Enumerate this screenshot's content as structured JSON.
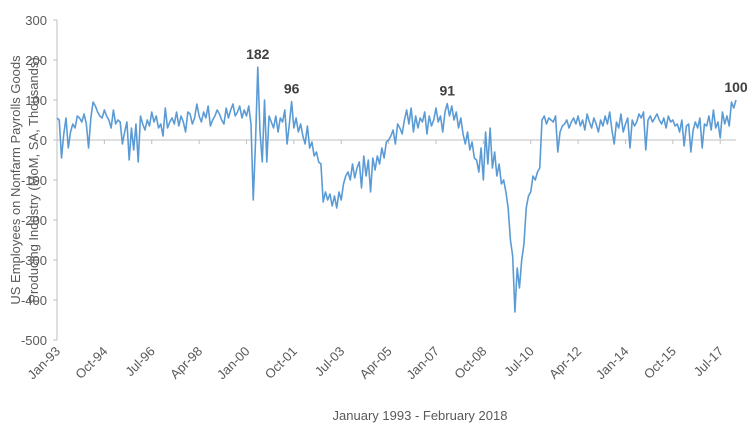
{
  "chart_data": {
    "type": "line",
    "x_label": "January 1993 - February 2018",
    "y_label": [
      "US Employees on Nonfarm Payrolls Goods",
      "Producing Industry (MoM, SA, Thousands)"
    ],
    "ylim": [
      -500,
      300
    ],
    "yticks": [
      -500,
      -400,
      -300,
      -200,
      -100,
      0,
      100,
      200,
      300
    ],
    "categories": [
      "Jan-93",
      null,
      null,
      null,
      null,
      null,
      null,
      null,
      null,
      null,
      null,
      null,
      null,
      null,
      null,
      null,
      null,
      null,
      null,
      null,
      null,
      "Oct-94",
      null,
      null,
      null,
      null,
      null,
      null,
      null,
      null,
      null,
      null,
      null,
      null,
      null,
      null,
      null,
      null,
      null,
      null,
      null,
      null,
      "Jul-96",
      null,
      null,
      null,
      null,
      null,
      null,
      null,
      null,
      null,
      null,
      null,
      null,
      null,
      null,
      null,
      null,
      null,
      null,
      null,
      null,
      "Apr-98",
      null,
      null,
      null,
      null,
      null,
      null,
      null,
      null,
      null,
      null,
      null,
      null,
      null,
      null,
      null,
      null,
      null,
      null,
      null,
      null,
      "Jan-00",
      null,
      null,
      null,
      null,
      null,
      null,
      null,
      null,
      null,
      null,
      null,
      null,
      null,
      null,
      null,
      null,
      null,
      null,
      null,
      null,
      "Oct-01",
      null,
      null,
      null,
      null,
      null,
      null,
      null,
      null,
      null,
      null,
      null,
      null,
      null,
      null,
      null,
      null,
      null,
      null,
      null,
      null,
      "Jul-03",
      null,
      null,
      null,
      null,
      null,
      null,
      null,
      null,
      null,
      null,
      null,
      null,
      null,
      null,
      null,
      null,
      null,
      null,
      null,
      null,
      "Apr-05",
      null,
      null,
      null,
      null,
      null,
      null,
      null,
      null,
      null,
      null,
      null,
      null,
      null,
      null,
      null,
      null,
      null,
      null,
      null,
      null,
      "Jan-07",
      null,
      null,
      null,
      null,
      null,
      null,
      null,
      null,
      null,
      null,
      null,
      null,
      null,
      null,
      null,
      null,
      null,
      null,
      null,
      null,
      "Oct-08",
      null,
      null,
      null,
      null,
      null,
      null,
      null,
      null,
      null,
      null,
      null,
      null,
      null,
      null,
      null,
      null,
      null,
      null,
      null,
      null,
      "Jul-10",
      null,
      null,
      null,
      null,
      null,
      null,
      null,
      null,
      null,
      null,
      null,
      null,
      null,
      null,
      null,
      null,
      null,
      null,
      null,
      null,
      "Apr-12",
      null,
      null,
      null,
      null,
      null,
      null,
      null,
      null,
      null,
      null,
      null,
      null,
      null,
      null,
      null,
      null,
      null,
      null,
      null,
      null,
      "Jan-14",
      null,
      null,
      null,
      null,
      null,
      null,
      null,
      null,
      null,
      null,
      null,
      null,
      null,
      null,
      null,
      null,
      null,
      null,
      null,
      null,
      "Oct-15",
      null,
      null,
      null,
      null,
      null,
      null,
      null,
      null,
      null,
      null,
      null,
      null,
      null,
      null,
      null,
      null,
      null,
      null,
      null,
      null,
      "Jul-17",
      null,
      null,
      null,
      null,
      null,
      null,
      null
    ],
    "series": [
      {
        "color": "#5b9bd5",
        "values": [
          55,
          50,
          -45,
          15,
          55,
          -20,
          20,
          40,
          30,
          60,
          55,
          45,
          65,
          40,
          -20,
          55,
          95,
          85,
          70,
          60,
          55,
          75,
          60,
          50,
          30,
          75,
          40,
          50,
          45,
          -10,
          20,
          45,
          -50,
          30,
          -25,
          40,
          -55,
          60,
          40,
          25,
          50,
          35,
          70,
          45,
          60,
          30,
          40,
          10,
          80,
          30,
          45,
          55,
          40,
          70,
          35,
          60,
          45,
          20,
          70,
          65,
          40,
          55,
          90,
          60,
          45,
          70,
          55,
          85,
          35,
          50,
          60,
          75,
          65,
          50,
          40,
          80,
          55,
          75,
          90,
          60,
          70,
          85,
          55,
          75,
          60,
          85,
          40,
          -150,
          -5,
          182,
          20,
          -55,
          100,
          -55,
          60,
          45,
          30,
          60,
          20,
          55,
          45,
          75,
          -10,
          40,
          96,
          30,
          55,
          20,
          40,
          10,
          -10,
          35,
          -20,
          -5,
          -40,
          -30,
          -55,
          -60,
          -155,
          -130,
          -150,
          -135,
          -165,
          -140,
          -170,
          -130,
          -150,
          -110,
          -90,
          -80,
          -100,
          -60,
          -95,
          -70,
          -55,
          -120,
          -40,
          -90,
          -50,
          -130,
          -45,
          -75,
          -40,
          -60,
          -20,
          -45,
          -5,
          0,
          10,
          25,
          -10,
          40,
          30,
          15,
          50,
          75,
          40,
          80,
          20,
          60,
          30,
          55,
          45,
          70,
          15,
          60,
          35,
          50,
          80,
          45,
          60,
          20,
          70,
          91,
          60,
          85,
          50,
          70,
          30,
          55,
          15,
          -10,
          20,
          -25,
          -5,
          -45,
          -50,
          -80,
          -20,
          -100,
          20,
          -60,
          30,
          -70,
          -30,
          -90,
          -60,
          -110,
          -100,
          -130,
          -170,
          -250,
          -290,
          -430,
          -320,
          -370,
          -300,
          -260,
          -170,
          -140,
          -130,
          -90,
          -100,
          -80,
          -70,
          50,
          60,
          40,
          55,
          50,
          45,
          60,
          -30,
          20,
          35,
          40,
          50,
          30,
          45,
          55,
          40,
          60,
          35,
          50,
          25,
          65,
          45,
          30,
          55,
          40,
          20,
          50,
          35,
          60,
          40,
          70,
          25,
          -10,
          45,
          30,
          65,
          20,
          40,
          55,
          -20,
          50,
          35,
          45,
          65,
          55,
          70,
          -25,
          50,
          60,
          45,
          55,
          65,
          50,
          40,
          55,
          30,
          60,
          45,
          50,
          35,
          40,
          20,
          50,
          -15,
          35,
          40,
          -30,
          25,
          45,
          30,
          55,
          -20,
          40,
          35,
          60,
          25,
          75,
          30,
          45,
          5,
          70,
          40,
          60,
          35,
          95,
          80,
          100
        ],
        "value_labels": [
          null,
          null,
          null,
          null,
          null,
          null,
          null,
          null,
          null,
          null,
          null,
          null,
          null,
          null,
          null,
          null,
          null,
          null,
          null,
          null,
          null,
          null,
          null,
          null,
          null,
          null,
          null,
          null,
          null,
          null,
          null,
          null,
          null,
          null,
          null,
          null,
          null,
          null,
          null,
          null,
          null,
          null,
          null,
          null,
          null,
          null,
          null,
          null,
          null,
          null,
          null,
          null,
          null,
          null,
          null,
          null,
          null,
          null,
          null,
          null,
          null,
          null,
          null,
          null,
          null,
          null,
          null,
          null,
          null,
          null,
          null,
          null,
          null,
          null,
          null,
          null,
          null,
          null,
          null,
          null,
          null,
          null,
          null,
          null,
          null,
          null,
          null,
          null,
          null,
          "182",
          null,
          null,
          null,
          null,
          null,
          null,
          null,
          null,
          null,
          null,
          null,
          null,
          null,
          null,
          "96",
          null,
          null,
          null,
          null,
          null,
          null,
          null,
          null,
          null,
          null,
          null,
          null,
          null,
          null,
          null,
          null,
          null,
          null,
          null,
          null,
          null,
          null,
          null,
          null,
          null,
          null,
          null,
          null,
          null,
          null,
          null,
          null,
          null,
          null,
          null,
          null,
          null,
          null,
          null,
          null,
          null,
          null,
          null,
          null,
          null,
          null,
          null,
          null,
          null,
          null,
          null,
          null,
          null,
          null,
          null,
          null,
          null,
          null,
          null,
          null,
          null,
          null,
          null,
          null,
          null,
          null,
          null,
          null,
          "91",
          null,
          null,
          null,
          null,
          null,
          null,
          null,
          null,
          null,
          null,
          null,
          null,
          null,
          null,
          null,
          null,
          null,
          null,
          null,
          null,
          null,
          null,
          null,
          null,
          null,
          null,
          null,
          null,
          null,
          null,
          null,
          null,
          null,
          null,
          null,
          null,
          null,
          null,
          null,
          null,
          null,
          null,
          null,
          null,
          null,
          null,
          null,
          null,
          null,
          null,
          null,
          null,
          null,
          null,
          null,
          null,
          null,
          null,
          null,
          null,
          null,
          null,
          null,
          null,
          null,
          null,
          null,
          null,
          null,
          null,
          null,
          null,
          null,
          null,
          null,
          null,
          null,
          null,
          null,
          null,
          null,
          null,
          null,
          null,
          null,
          null,
          null,
          null,
          null,
          null,
          null,
          null,
          null,
          null,
          null,
          null,
          null,
          null,
          null,
          null,
          null,
          null,
          null,
          null,
          null,
          null,
          null,
          null,
          null,
          null,
          null,
          null,
          null,
          null,
          null,
          null,
          null,
          null,
          null,
          null,
          null,
          null,
          null,
          null,
          null,
          null,
          null,
          "100"
        ]
      }
    ]
  }
}
